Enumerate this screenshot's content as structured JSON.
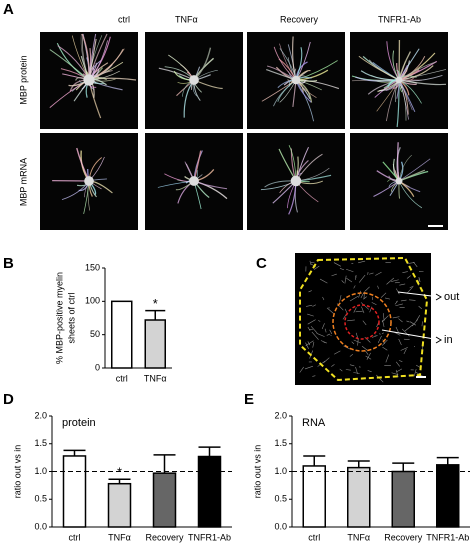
{
  "figure": {
    "panel_labels": [
      "A",
      "B",
      "C",
      "D",
      "E"
    ],
    "columns": [
      "ctrl",
      "TNFα",
      "Recovery",
      "TNFR1-Ab"
    ],
    "rows": [
      "MBP protein",
      "MBP mRNA"
    ],
    "c_labels": [
      "out",
      "in"
    ]
  },
  "chart_data": [
    {
      "type": "bar",
      "categories": [
        "ctrl",
        "TNFα"
      ],
      "values": [
        100,
        72
      ],
      "errors": [
        0,
        14
      ],
      "colors": [
        "#ffffff",
        "#d3d3d3"
      ],
      "significance": [
        null,
        "*"
      ],
      "y_label": [
        "% MBP-positive myelin",
        "sheets of ctrl"
      ],
      "ylim": [
        0,
        150
      ],
      "yticks": [
        0,
        50,
        100,
        150
      ]
    },
    {
      "type": "bar",
      "title": "protein",
      "categories": [
        "ctrl",
        "TNFα",
        "Recovery",
        "TNFR1-Ab"
      ],
      "values": [
        1.28,
        0.78,
        0.97,
        1.27
      ],
      "errors": [
        0.1,
        0.08,
        0.33,
        0.17
      ],
      "colors": [
        "#ffffff",
        "#d3d3d3",
        "#666666",
        "#000000"
      ],
      "significance": [
        null,
        "*",
        null,
        null
      ],
      "y_label": [
        "ratio out vs in"
      ],
      "reference_line": 1,
      "ylim": [
        0,
        2
      ],
      "yticks": [
        {
          "value": 0,
          "label": "0.0"
        },
        {
          "value": 0.5,
          "label": "0.5"
        },
        {
          "value": 1,
          "label": "1.0"
        },
        {
          "value": 1.5,
          "label": "1.5"
        },
        {
          "value": 2,
          "label": "2.0"
        }
      ]
    },
    {
      "type": "bar",
      "title": "RNA",
      "categories": [
        "ctrl",
        "TNFα",
        "Recovery",
        "TNFR1-Ab"
      ],
      "values": [
        1.1,
        1.07,
        1.0,
        1.12
      ],
      "errors": [
        0.18,
        0.12,
        0.15,
        0.13
      ],
      "colors": [
        "#ffffff",
        "#d3d3d3",
        "#666666",
        "#000000"
      ],
      "significance": [
        null,
        null,
        null,
        null
      ],
      "y_label": [
        "ratio out vs in"
      ],
      "reference_line": 1,
      "ylim": [
        0,
        2
      ],
      "yticks": [
        {
          "value": 0,
          "label": "0.0"
        },
        {
          "value": 0.5,
          "label": "0.5"
        },
        {
          "value": 1,
          "label": "1.0"
        },
        {
          "value": 1.5,
          "label": "1.5"
        },
        {
          "value": 2,
          "label": "2.0"
        }
      ]
    }
  ]
}
